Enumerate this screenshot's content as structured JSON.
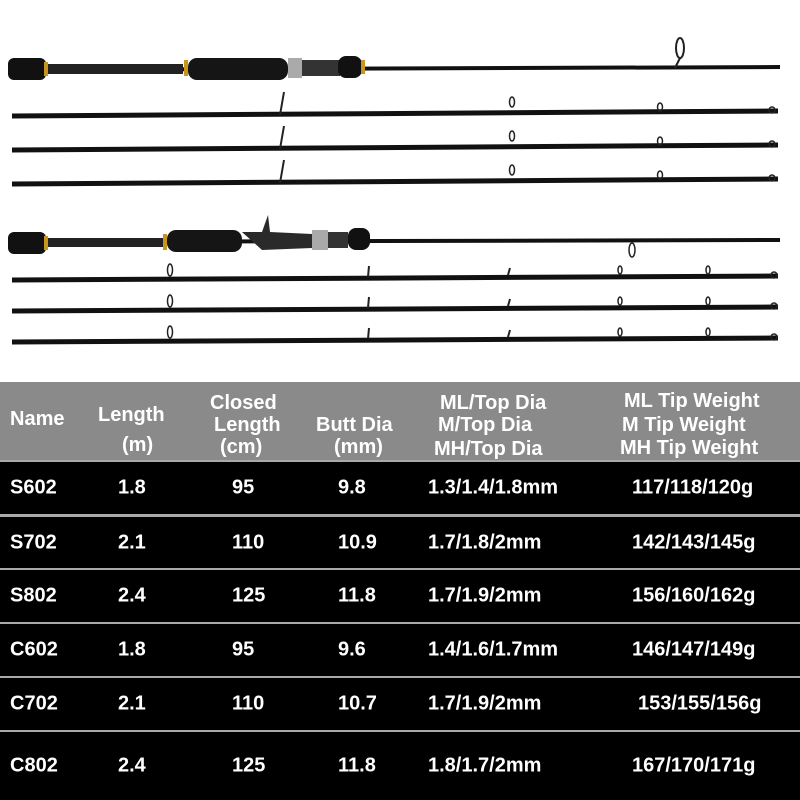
{
  "table": {
    "headers": [
      [
        "Name"
      ],
      [
        "Length",
        "(m)"
      ],
      [
        "Closed",
        "Length",
        "(cm)"
      ],
      [
        "Butt Dia",
        "(mm)"
      ],
      [
        "ML/Top Dia",
        "M/Top Dia",
        "MH/Top Dia"
      ],
      [
        "ML Tip Weight",
        "M Tip Weight",
        "MH Tip Weight"
      ]
    ],
    "rows": [
      [
        "S602",
        "1.8",
        "95",
        "9.8",
        "1.3/1.4/1.8mm",
        "117/118/120g"
      ],
      [
        "S702",
        "2.1",
        "110",
        "10.9",
        "1.7/1.8/2mm",
        "142/143/145g"
      ],
      [
        "S802",
        "2.4",
        "125",
        "11.8",
        "1.7/1.9/2mm",
        "156/160/162g"
      ],
      [
        "C602",
        "1.8",
        "95",
        "9.6",
        "1.4/1.6/1.7mm",
        "146/147/149g"
      ],
      [
        "C702",
        "2.1",
        "110",
        "10.7",
        "1.7/1.9/2mm",
        "153/155/156g"
      ],
      [
        "C802",
        "2.4",
        "125",
        "11.8",
        "1.8/1.7/2mm",
        "167/170/171g"
      ]
    ]
  },
  "colors": {
    "header_bg": "#8a8a8a",
    "row_bg": "#000000",
    "text": "#ffffff",
    "rod_accent": "#c8961e"
  }
}
